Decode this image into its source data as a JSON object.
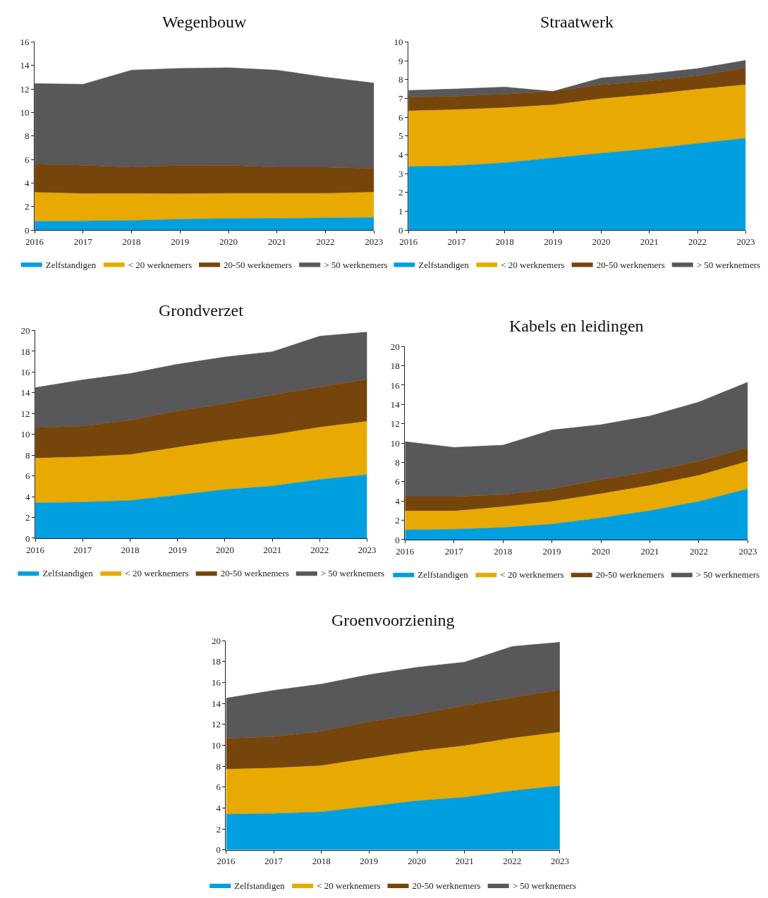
{
  "chart_data": [
    {
      "type": "area",
      "title": "Wegenbouw",
      "stacked": true,
      "legend": "bottom",
      "categories": [
        "2016",
        "2017",
        "2018",
        "2019",
        "2020",
        "2021",
        "2022",
        "2023"
      ],
      "ylim": [
        0,
        16
      ],
      "yticks": [
        0,
        2,
        4,
        6,
        8,
        10,
        12,
        14,
        16
      ],
      "series": [
        {
          "name": "Zelfstandigen",
          "color": "#009fe0",
          "values": [
            0.75,
            0.78,
            0.82,
            0.92,
            0.98,
            1.0,
            1.03,
            1.08
          ]
        },
        {
          "name": "< 20 werknemers",
          "color": "#e8aa00",
          "values": [
            2.45,
            2.32,
            2.28,
            2.16,
            2.14,
            2.12,
            2.09,
            2.14
          ]
        },
        {
          "name": "20-50 werknemers",
          "color": "#76450b",
          "values": [
            2.4,
            2.42,
            2.25,
            2.42,
            2.4,
            2.23,
            2.23,
            2.03
          ]
        },
        {
          "name": "> 50 werknemers",
          "color": "#58585a",
          "values": [
            6.85,
            6.88,
            8.25,
            8.25,
            8.28,
            8.25,
            7.65,
            7.25
          ]
        }
      ]
    },
    {
      "type": "area",
      "title": "Straatwerk",
      "stacked": true,
      "legend": "bottom",
      "categories": [
        "2016",
        "2017",
        "2018",
        "2019",
        "2020",
        "2021",
        "2022",
        "2023"
      ],
      "ylim": [
        0,
        10
      ],
      "yticks": [
        0,
        1,
        2,
        3,
        4,
        5,
        6,
        7,
        8,
        9,
        10
      ],
      "series": [
        {
          "name": "Zelfstandigen",
          "color": "#009fe0",
          "values": [
            3.37,
            3.42,
            3.58,
            3.83,
            4.08,
            4.32,
            4.6,
            4.88
          ]
        },
        {
          "name": "< 20 werknemers",
          "color": "#e8aa00",
          "values": [
            2.96,
            2.98,
            2.92,
            2.82,
            2.9,
            2.88,
            2.88,
            2.84
          ]
        },
        {
          "name": "20-50 werknemers",
          "color": "#76450b",
          "values": [
            0.72,
            0.72,
            0.72,
            0.72,
            0.74,
            0.72,
            0.72,
            0.9
          ]
        },
        {
          "name": "> 50 werknemers",
          "color": "#58585a",
          "values": [
            0.37,
            0.38,
            0.38,
            0,
            0.36,
            0.38,
            0.38,
            0.4
          ]
        }
      ]
    },
    {
      "type": "area",
      "title": "Grondverzet",
      "stacked": true,
      "legend": "bottom",
      "categories": [
        "2016",
        "2017",
        "2018",
        "2019",
        "2020",
        "2021",
        "2022",
        "2023"
      ],
      "ylim": [
        0,
        20
      ],
      "yticks": [
        0,
        2,
        4,
        6,
        8,
        10,
        12,
        14,
        16,
        18,
        20
      ],
      "series": [
        {
          "name": "Zelfstandigen",
          "color": "#009fe0",
          "values": [
            3.4,
            3.48,
            3.63,
            4.15,
            4.68,
            5.02,
            5.65,
            6.12
          ]
        },
        {
          "name": "< 20 werknemers",
          "color": "#e8aa00",
          "values": [
            4.3,
            4.34,
            4.42,
            4.6,
            4.74,
            4.93,
            5.03,
            5.13
          ]
        },
        {
          "name": "20-50 werknemers",
          "color": "#76450b",
          "values": [
            2.95,
            2.98,
            3.3,
            3.5,
            3.53,
            3.85,
            3.87,
            4.05
          ]
        },
        {
          "name": "> 50 werknemers",
          "color": "#58585a",
          "values": [
            3.85,
            4.45,
            4.5,
            4.5,
            4.5,
            4.15,
            4.9,
            4.55
          ]
        }
      ]
    },
    {
      "type": "area",
      "title": "Kabels en leidingen",
      "stacked": true,
      "legend": "bottom",
      "categories": [
        "2016",
        "2017",
        "2018",
        "2019",
        "2020",
        "2021",
        "2022",
        "2023"
      ],
      "ylim": [
        0,
        20
      ],
      "yticks": [
        0,
        2,
        4,
        6,
        8,
        10,
        12,
        14,
        16,
        18,
        20
      ],
      "series": [
        {
          "name": "Zelfstandigen",
          "color": "#009fe0",
          "values": [
            1.0,
            1.07,
            1.25,
            1.6,
            2.25,
            3.0,
            3.95,
            5.25
          ]
        },
        {
          "name": "< 20 werknemers",
          "color": "#e8aa00",
          "values": [
            1.95,
            1.88,
            2.15,
            2.35,
            2.5,
            2.6,
            2.7,
            2.85
          ]
        },
        {
          "name": "20-50 werknemers",
          "color": "#76450b",
          "values": [
            1.5,
            1.5,
            1.25,
            1.3,
            1.45,
            1.45,
            1.45,
            1.45
          ]
        },
        {
          "name": "> 50 werknemers",
          "color": "#58585a",
          "values": [
            5.7,
            5.1,
            5.13,
            6.1,
            5.7,
            5.75,
            6.15,
            6.75
          ]
        }
      ]
    },
    {
      "type": "area",
      "title": "Groenvoorziening",
      "stacked": true,
      "legend": "bottom",
      "categories": [
        "2016",
        "2017",
        "2018",
        "2019",
        "2020",
        "2021",
        "2022",
        "2023"
      ],
      "ylim": [
        0,
        20
      ],
      "yticks": [
        0,
        2,
        4,
        6,
        8,
        10,
        12,
        14,
        16,
        18,
        20
      ],
      "series": [
        {
          "name": "Zelfstandigen",
          "color": "#009fe0",
          "values": [
            3.4,
            3.48,
            3.63,
            4.15,
            4.68,
            5.02,
            5.65,
            6.12
          ]
        },
        {
          "name": "< 20 werknemers",
          "color": "#e8aa00",
          "values": [
            4.3,
            4.34,
            4.42,
            4.6,
            4.74,
            4.93,
            5.03,
            5.13
          ]
        },
        {
          "name": "20-50 werknemers",
          "color": "#76450b",
          "values": [
            2.95,
            2.98,
            3.3,
            3.5,
            3.53,
            3.85,
            3.87,
            4.05
          ]
        },
        {
          "name": "> 50 werknemers",
          "color": "#58585a",
          "values": [
            3.85,
            4.45,
            4.5,
            4.5,
            4.5,
            4.15,
            4.9,
            4.55
          ]
        }
      ]
    }
  ]
}
